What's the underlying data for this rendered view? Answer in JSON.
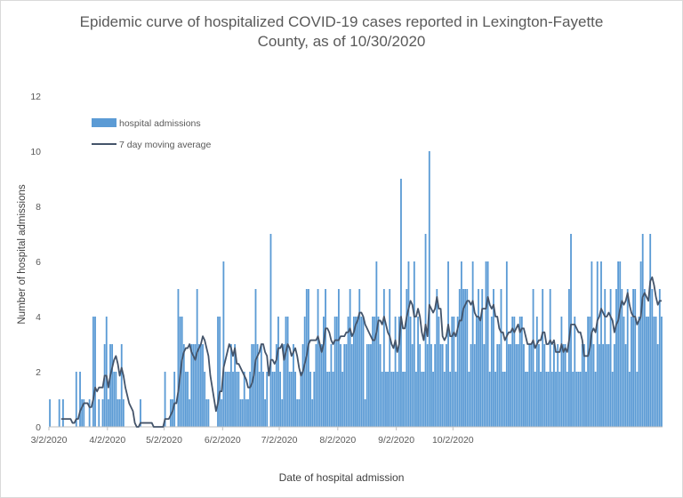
{
  "chart_data": {
    "type": "bar",
    "title_line1": "Epidemic curve of hospitalized COVID-19 cases reported in Lexington-Fayette",
    "title_line2": "County, as of 10/30/2020",
    "xlabel": "Date of hospital admission",
    "ylabel": "Number of hospital admissions",
    "ylim": [
      0,
      12
    ],
    "yticks": [
      "0",
      "2",
      "4",
      "6",
      "8",
      "10",
      "12"
    ],
    "xticks": [
      "3/2/2020",
      "4/2/2020",
      "5/2/2020",
      "6/2/2020",
      "7/2/2020",
      "8/2/2020",
      "9/2/2020",
      "10/2/2020"
    ],
    "legend": "top-left",
    "colors": {
      "bars": "#5b9bd5",
      "line": "#44546a"
    },
    "series": [
      {
        "name": "hospital admissions",
        "type": "bar",
        "start_date": "2020-03-02",
        "values": [
          1,
          0,
          0,
          0,
          0,
          1,
          0,
          1,
          0,
          0,
          0,
          0,
          0,
          0,
          2,
          0,
          2,
          1,
          1,
          0,
          0,
          1,
          0,
          4,
          4,
          0,
          1,
          0,
          1,
          3,
          4,
          1,
          3,
          3,
          2,
          2,
          1,
          1,
          3,
          1,
          0,
          0,
          0,
          0,
          0,
          0,
          0,
          0,
          1,
          0,
          0,
          0,
          0,
          0,
          0,
          0,
          0,
          0,
          0,
          0,
          0,
          2,
          0,
          0,
          1,
          1,
          2,
          0,
          5,
          4,
          4,
          3,
          2,
          2,
          1,
          3,
          3,
          3,
          5,
          3,
          3,
          3,
          2,
          1,
          1,
          0,
          0,
          0,
          0,
          4,
          4,
          1,
          6,
          2,
          2,
          2,
          3,
          2,
          3,
          2,
          2,
          1,
          1,
          2,
          1,
          1,
          2,
          3,
          3,
          5,
          3,
          2,
          3,
          2,
          1,
          2,
          0,
          7,
          2,
          2,
          3,
          4,
          2,
          1,
          3,
          4,
          4,
          2,
          2,
          3,
          2,
          1,
          1,
          2,
          3,
          4,
          5,
          5,
          2,
          1,
          2,
          3,
          5,
          3,
          3,
          4,
          5,
          2,
          2,
          3,
          2,
          4,
          4,
          5,
          3,
          2,
          3,
          3,
          4,
          5,
          3,
          4,
          4,
          4,
          5,
          4,
          4,
          1,
          3,
          3,
          3,
          4,
          4,
          6,
          4,
          3,
          2,
          5,
          2,
          2,
          5,
          2,
          2,
          4,
          2,
          4,
          9,
          2,
          2,
          5,
          6,
          4,
          3,
          6,
          2,
          4,
          3,
          2,
          2,
          7,
          3,
          10,
          3,
          2,
          3,
          5,
          4,
          3,
          3,
          2,
          3,
          6,
          2,
          4,
          4,
          2,
          4,
          5,
          6,
          5,
          5,
          5,
          2,
          3,
          6,
          3,
          4,
          5,
          4,
          5,
          3,
          6,
          6,
          2,
          4,
          5,
          2,
          3,
          3,
          5,
          2,
          2,
          6,
          3,
          3,
          4,
          4,
          3,
          3,
          4,
          4,
          3,
          2,
          2,
          3,
          3,
          5,
          2,
          4,
          3,
          2,
          5,
          3,
          2,
          2,
          5,
          2,
          3,
          2,
          3,
          2,
          4,
          3,
          3,
          2,
          5,
          7,
          2,
          4,
          2,
          2,
          2,
          3,
          3,
          2,
          4,
          4,
          6,
          3,
          2,
          6,
          3,
          6,
          3,
          5,
          3,
          3,
          5,
          2,
          3,
          5,
          6,
          6,
          5,
          4,
          3,
          5,
          2,
          4,
          5,
          5,
          2,
          4,
          6,
          7,
          5,
          4,
          4,
          7,
          5,
          4,
          4,
          3,
          5,
          4
        ],
        "values_note": ""
      },
      {
        "name": "7 day moving average",
        "type": "line",
        "window": 7
      }
    ]
  }
}
